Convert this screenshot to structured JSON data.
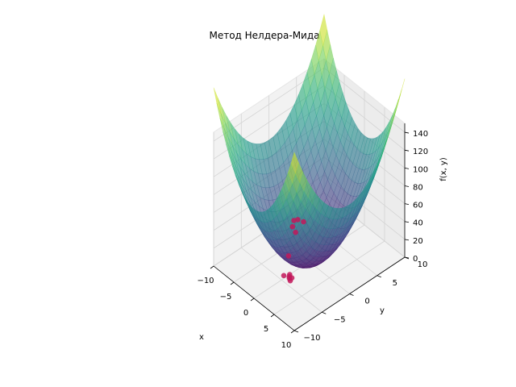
{
  "chart_data": {
    "type": "surface3d",
    "title": "Метод Нелдера-Мида",
    "xlabel": "x",
    "ylabel": "y",
    "zlabel": "f(x, y)",
    "xlim": [
      -10,
      10
    ],
    "ylim": [
      -10,
      10
    ],
    "zlim": [
      0,
      150
    ],
    "x_ticks": [
      "−10",
      "−5",
      "0",
      "5",
      "10"
    ],
    "y_ticks": [
      "−10",
      "−5",
      "0",
      "5",
      "10"
    ],
    "z_ticks": [
      "0",
      "20",
      "40",
      "60",
      "80",
      "100",
      "120",
      "140"
    ],
    "surface": {
      "function": "x^2 + y^2 (paraboloid)",
      "colormap": "viridis",
      "alpha": 0.6
    },
    "grid": true,
    "series": [
      {
        "kind": "scatter",
        "color": "#c2185b",
        "points": [
          [
            -8.6,
            3.5,
            0.6
          ],
          [
            -8.3,
            4.0,
            0.6
          ],
          [
            -7.7,
            2.6,
            0.6
          ],
          [
            -7.3,
            4.3,
            0.6
          ],
          [
            -6.4,
            2.2,
            0.6
          ],
          [
            -3.2,
            -1.4,
            0.6
          ],
          [
            -0.4,
            -4.3,
            0.6
          ],
          [
            0.1,
            -3.6,
            0.6
          ],
          [
            0.4,
            -3.9,
            0.6
          ],
          [
            0.7,
            -4.1,
            0.6
          ],
          [
            0.9,
            -3.8,
            0.6
          ],
          [
            1.2,
            -4.3,
            0.6
          ]
        ]
      }
    ]
  }
}
